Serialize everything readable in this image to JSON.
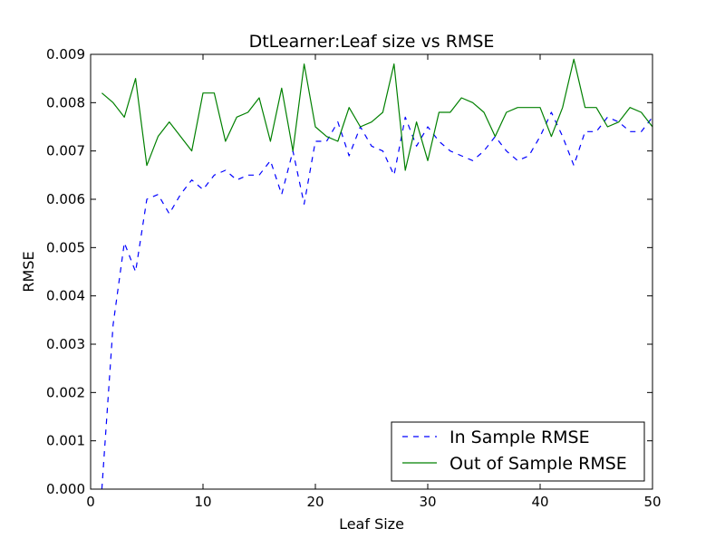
{
  "chart_data": {
    "type": "line",
    "title": "DtLearner:Leaf size vs RMSE",
    "xlabel": "Leaf Size",
    "ylabel": "RMSE",
    "xlim": [
      0,
      50
    ],
    "ylim": [
      0,
      0.009
    ],
    "xticks": [
      0,
      10,
      20,
      30,
      40,
      50
    ],
    "xtick_labels": [
      "0",
      "10",
      "20",
      "30",
      "40",
      "50"
    ],
    "yticks": [
      0,
      0.001,
      0.002,
      0.003,
      0.004,
      0.005,
      0.006,
      0.007,
      0.008,
      0.009
    ],
    "ytick_labels": [
      "0.000",
      "0.001",
      "0.002",
      "0.003",
      "0.004",
      "0.005",
      "0.006",
      "0.007",
      "0.008",
      "0.009"
    ],
    "grid": false,
    "legend_position": "lower-right",
    "x": [
      1,
      2,
      3,
      4,
      5,
      6,
      7,
      8,
      9,
      10,
      11,
      12,
      13,
      14,
      15,
      16,
      17,
      18,
      19,
      20,
      21,
      22,
      23,
      24,
      25,
      26,
      27,
      28,
      29,
      30,
      31,
      32,
      33,
      34,
      35,
      36,
      37,
      38,
      39,
      40,
      41,
      42,
      43,
      44,
      45,
      46,
      47,
      48,
      49,
      50
    ],
    "series": [
      {
        "name": "In Sample RMSE",
        "color": "#0000ff",
        "linestyle": "dashed",
        "values": [
          0.0,
          0.0034,
          0.0051,
          0.0045,
          0.006,
          0.0061,
          0.0057,
          0.0061,
          0.0064,
          0.0062,
          0.0065,
          0.0066,
          0.0064,
          0.0065,
          0.0065,
          0.0068,
          0.0061,
          0.007,
          0.0059,
          0.0072,
          0.0072,
          0.0076,
          0.0069,
          0.0075,
          0.0071,
          0.007,
          0.0065,
          0.0077,
          0.0071,
          0.0075,
          0.0072,
          0.007,
          0.0069,
          0.0068,
          0.007,
          0.0073,
          0.007,
          0.0068,
          0.0069,
          0.0073,
          0.0078,
          0.0073,
          0.0067,
          0.0074,
          0.0074,
          0.0077,
          0.0076,
          0.0074,
          0.0074,
          0.0077
        ]
      },
      {
        "name": "Out of Sample RMSE",
        "color": "#008000",
        "linestyle": "solid",
        "values": [
          0.0082,
          0.008,
          0.0077,
          0.0085,
          0.0067,
          0.0073,
          0.0076,
          0.0073,
          0.007,
          0.0082,
          0.0082,
          0.0072,
          0.0077,
          0.0078,
          0.0081,
          0.0072,
          0.0083,
          0.007,
          0.0088,
          0.0075,
          0.0073,
          0.0072,
          0.0079,
          0.0075,
          0.0076,
          0.0078,
          0.0088,
          0.0066,
          0.0076,
          0.0068,
          0.0078,
          0.0078,
          0.0081,
          0.008,
          0.0078,
          0.0073,
          0.0078,
          0.0079,
          0.0079,
          0.0079,
          0.0073,
          0.0079,
          0.0089,
          0.0079,
          0.0079,
          0.0075,
          0.0076,
          0.0079,
          0.0078,
          0.0075
        ]
      }
    ]
  }
}
